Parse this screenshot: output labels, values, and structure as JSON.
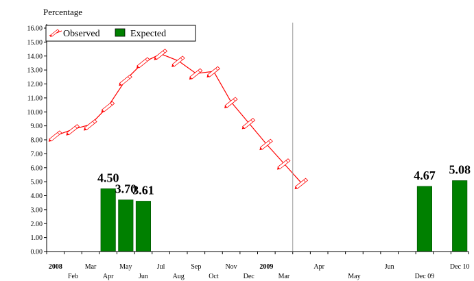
{
  "chart_data": {
    "type": "line+bar",
    "ylabel": "Percentage",
    "ylim": [
      0,
      16
    ],
    "yticks": [
      "0.00",
      "1.00",
      "2.00",
      "3.00",
      "4.00",
      "5.00",
      "6.00",
      "7.00",
      "8.00",
      "9.00",
      "10.00",
      "11.00",
      "12.00",
      "13.00",
      "14.00",
      "15.00",
      "16.00"
    ],
    "x_tick_labels": [
      {
        "top": "2008",
        "bottom": ""
      },
      {
        "top": "",
        "bottom": "Feb"
      },
      {
        "top": "Mar",
        "bottom": ""
      },
      {
        "top": "",
        "bottom": "Apr"
      },
      {
        "top": "May",
        "bottom": ""
      },
      {
        "top": "",
        "bottom": "Jun"
      },
      {
        "top": "Jul",
        "bottom": ""
      },
      {
        "top": "",
        "bottom": "Aug"
      },
      {
        "top": "Sep",
        "bottom": ""
      },
      {
        "top": "",
        "bottom": "Oct"
      },
      {
        "top": "Nov",
        "bottom": ""
      },
      {
        "top": "",
        "bottom": "Dec"
      },
      {
        "top": "2009",
        "bottom": ""
      },
      {
        "top": "",
        "bottom": "Mar"
      },
      {
        "top": "",
        "bottom": ""
      },
      {
        "top": "Apr",
        "bottom": ""
      },
      {
        "top": "",
        "bottom": ""
      },
      {
        "top": "",
        "bottom": "May"
      },
      {
        "top": "",
        "bottom": ""
      },
      {
        "top": "Jun",
        "bottom": ""
      },
      {
        "top": "",
        "bottom": ""
      },
      {
        "top": "",
        "bottom": "Dec 09"
      },
      {
        "top": "",
        "bottom": ""
      },
      {
        "top": "Dec 10",
        "bottom": ""
      }
    ],
    "bold_tick_labels": [
      "2008",
      "2009"
    ],
    "series": [
      {
        "name": "Observed",
        "type": "line",
        "color": "#ff0000",
        "values": [
          8.3,
          8.75,
          9.1,
          10.4,
          12.3,
          13.55,
          14.15,
          13.65,
          12.75,
          12.9,
          10.7,
          9.2,
          7.7,
          6.3,
          4.9
        ]
      },
      {
        "name": "Expected",
        "type": "bar",
        "color": "#008000",
        "categories": [
          "Apr",
          "May",
          "Jun",
          "Dec 09",
          "Dec 10"
        ],
        "values": [
          4.5,
          3.7,
          3.61,
          4.67,
          5.08
        ],
        "labels": [
          "4.50",
          "3.70",
          "3.61",
          "4.67",
          "5.08"
        ]
      }
    ],
    "legend": {
      "position": "top-left",
      "entries": [
        "Observed",
        "Expected"
      ]
    },
    "grid": false
  }
}
